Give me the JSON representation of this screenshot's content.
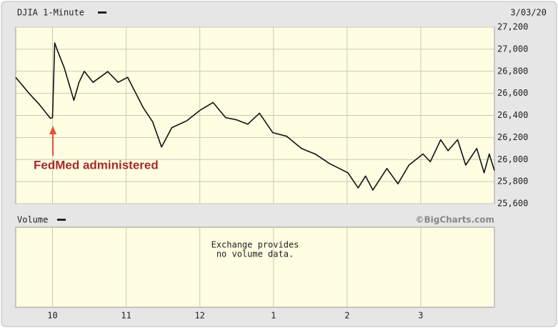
{
  "chart_data": {
    "type": "line",
    "title": "DJIA 1-Minute",
    "date": "3/03/20",
    "annotation": "FedMed administered",
    "volume_title": "Volume",
    "credit": "©BigCharts.com",
    "volume_note": [
      "Exchange provides",
      "no volume data."
    ],
    "x": [
      9.5,
      9.68,
      9.82,
      9.97,
      10.0,
      10.03,
      10.06,
      10.16,
      10.29,
      10.36,
      10.43,
      10.55,
      10.75,
      10.89,
      11.02,
      11.23,
      11.36,
      11.48,
      11.62,
      11.82,
      12.01,
      12.18,
      12.35,
      12.5,
      12.65,
      12.81,
      12.99,
      13.18,
      13.38,
      13.57,
      13.76,
      14.01,
      14.15,
      14.25,
      14.35,
      14.54,
      14.69,
      14.84,
      15.03,
      15.13,
      15.27,
      15.37,
      15.5,
      15.61,
      15.76,
      15.86,
      15.93,
      16.0
    ],
    "series": [
      {
        "name": "DJIA",
        "color": "#111111",
        "values": [
          26745,
          26600,
          26500,
          26374,
          26380,
          27057,
          27000,
          26830,
          26537,
          26700,
          26800,
          26700,
          26797,
          26700,
          26745,
          26472,
          26341,
          26114,
          26289,
          26350,
          26450,
          26517,
          26380,
          26360,
          26320,
          26420,
          26244,
          26211,
          26100,
          26049,
          25964,
          25880,
          25743,
          25850,
          25724,
          25919,
          25780,
          25950,
          26050,
          25980,
          26179,
          26080,
          26180,
          25950,
          26100,
          25880,
          26050,
          25900
        ]
      }
    ],
    "xlim": [
      9.5,
      16
    ],
    "xticks": [
      10,
      11,
      12,
      {
        "value": 13,
        "label": "1"
      },
      {
        "value": 14,
        "label": "2"
      },
      {
        "value": 15,
        "label": "3"
      }
    ],
    "ylim": [
      25600,
      27200
    ],
    "yticks": [
      {
        "value": 25600,
        "label": "25,600"
      },
      {
        "value": 25800,
        "label": "25,800"
      },
      {
        "value": 26000,
        "label": "26,000"
      },
      {
        "value": 26200,
        "label": "26,200"
      },
      {
        "value": 26400,
        "label": "26,400"
      },
      {
        "value": 26600,
        "label": "26,600"
      },
      {
        "value": 26800,
        "label": "26,800"
      },
      {
        "value": 27000,
        "label": "27,000"
      },
      {
        "value": 27200,
        "label": "27,200"
      }
    ],
    "grid": true
  }
}
